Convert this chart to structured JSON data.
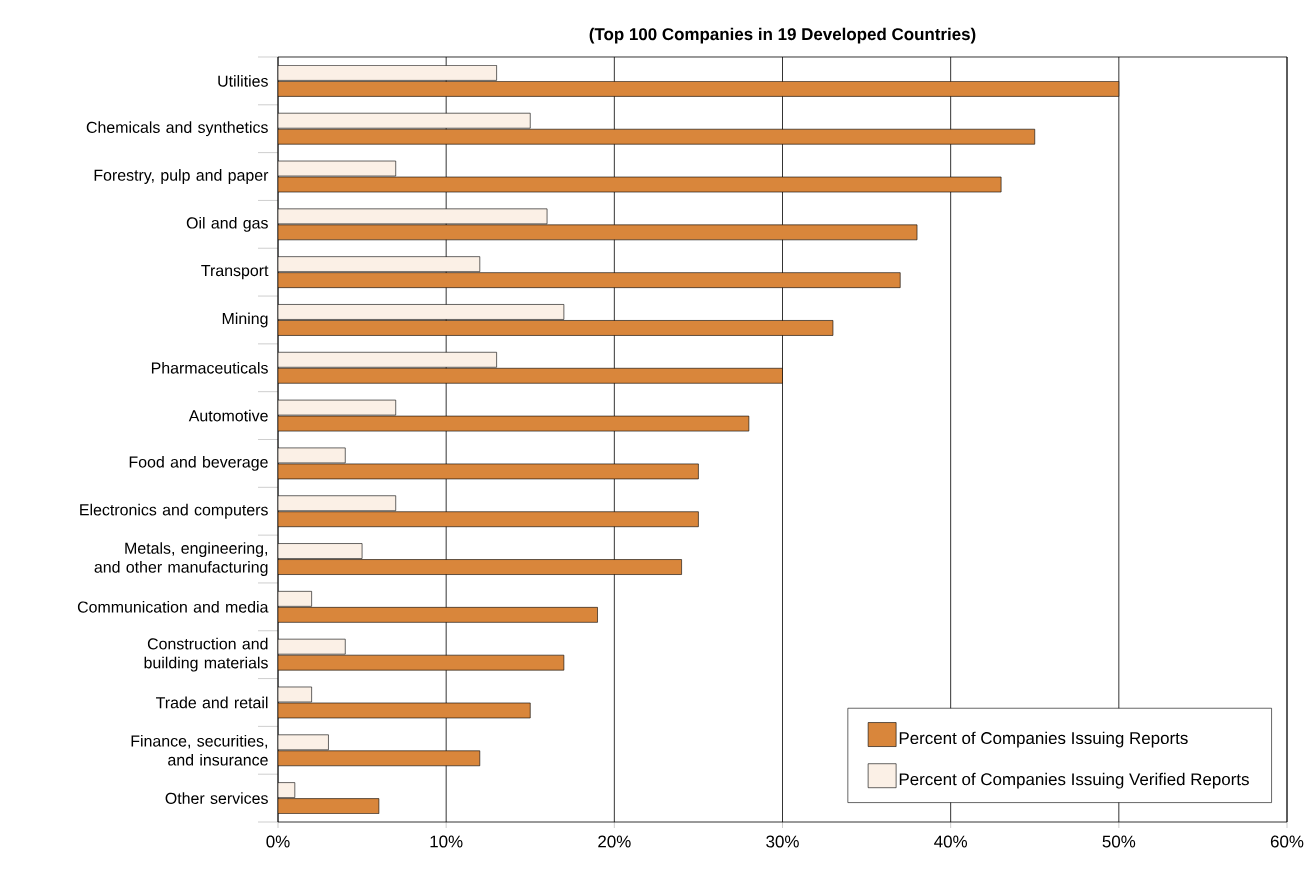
{
  "chart_data": {
    "type": "bar",
    "orientation": "horizontal",
    "title": "(Top 100 Companies in 19 Developed Countries)",
    "categories": [
      "Utilities",
      "Chemicals and synthetics",
      "Forestry, pulp and paper",
      "Oil and gas",
      "Transport",
      "Mining",
      "Pharmaceuticals",
      "Automotive",
      "Food and beverage",
      "Electronics and computers",
      "Metals, engineering, and other manufacturing",
      "Communication and media",
      "Construction and building materials",
      "Trade and retail",
      "Finance, securities, and insurance",
      "Other services"
    ],
    "series": [
      {
        "name": "Percent of Companies Issuing Reports",
        "color": "#d9863b",
        "values": [
          50,
          45,
          43,
          38,
          37,
          33,
          30,
          28,
          25,
          25,
          24,
          19,
          17,
          15,
          12,
          6
        ]
      },
      {
        "name": "Percent of Companies Issuing Verified Reports",
        "color": "#fbf0e6",
        "values": [
          13,
          15,
          7,
          16,
          12,
          17,
          13,
          7,
          4,
          7,
          5,
          2,
          4,
          2,
          3,
          1
        ]
      }
    ],
    "xlim": [
      0,
      60
    ],
    "xticks": [
      {
        "value": 0,
        "label": "0%"
      },
      {
        "value": 10,
        "label": "10%"
      },
      {
        "value": 20,
        "label": "20%"
      },
      {
        "value": 30,
        "label": "30%"
      },
      {
        "value": 40,
        "label": "40%"
      },
      {
        "value": 50,
        "label": "50%"
      },
      {
        "value": 60,
        "label": "60%"
      }
    ],
    "grid": "x",
    "legend": "bottom right"
  }
}
